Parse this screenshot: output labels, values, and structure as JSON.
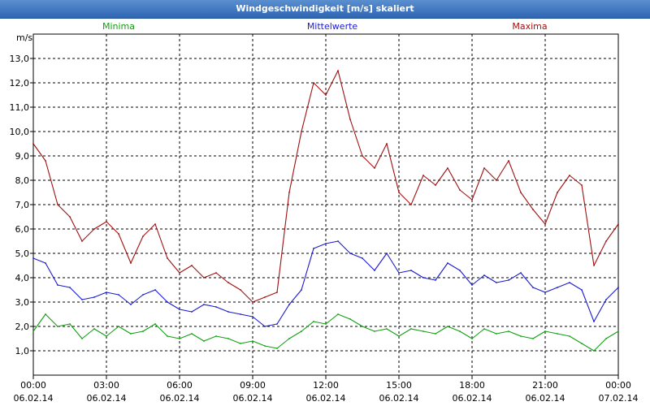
{
  "window": {
    "title": "Windgeschwindigkeit [m/s] skaliert"
  },
  "chart_data": {
    "type": "line",
    "title": "Windgeschwindigkeit [m/s] skaliert",
    "ylabel": "m/s",
    "xlabel": "",
    "ylim": [
      0.0,
      14.0
    ],
    "y_ticks": [
      "1,0",
      "2,0",
      "3,0",
      "4,0",
      "5,0",
      "6,0",
      "7,0",
      "8,0",
      "9,0",
      "10,0",
      "11,0",
      "12,0",
      "13,0"
    ],
    "y_tick_values": [
      1,
      2,
      3,
      4,
      5,
      6,
      7,
      8,
      9,
      10,
      11,
      12,
      13
    ],
    "xlim": [
      0,
      24
    ],
    "x_ticks": [
      {
        "time": "00:00",
        "date": "06.02.14",
        "hour": 0
      },
      {
        "time": "03:00",
        "date": "06.02.14",
        "hour": 3
      },
      {
        "time": "06:00",
        "date": "06.02.14",
        "hour": 6
      },
      {
        "time": "09:00",
        "date": "06.02.14",
        "hour": 9
      },
      {
        "time": "12:00",
        "date": "06.02.14",
        "hour": 12
      },
      {
        "time": "15:00",
        "date": "06.02.14",
        "hour": 15
      },
      {
        "time": "18:00",
        "date": "06.02.14",
        "hour": 18
      },
      {
        "time": "21:00",
        "date": "06.02.14",
        "hour": 21
      },
      {
        "time": "00:00",
        "date": "07.02.14",
        "hour": 24
      }
    ],
    "grid": true,
    "legend_position": "top",
    "series": [
      {
        "name": "Minima",
        "color": "#10a010",
        "x": [
          0,
          0.5,
          1,
          1.5,
          2,
          2.5,
          3,
          3.5,
          4,
          4.5,
          5,
          5.5,
          6,
          6.5,
          7,
          7.5,
          8,
          8.5,
          9,
          9.5,
          10,
          10.5,
          11,
          11.5,
          12,
          12.5,
          13,
          13.5,
          14,
          14.5,
          15,
          15.5,
          16,
          16.5,
          17,
          17.5,
          18,
          18.5,
          19,
          19.5,
          20,
          20.5,
          21,
          21.5,
          22,
          22.5,
          23,
          23.5,
          24
        ],
        "values": [
          1.8,
          2.5,
          2.0,
          2.1,
          1.5,
          1.9,
          1.6,
          2.0,
          1.7,
          1.8,
          2.1,
          1.6,
          1.5,
          1.7,
          1.4,
          1.6,
          1.5,
          1.3,
          1.4,
          1.2,
          1.1,
          1.5,
          1.8,
          2.2,
          2.1,
          2.5,
          2.3,
          2.0,
          1.8,
          1.9,
          1.6,
          1.9,
          1.8,
          1.7,
          2.0,
          1.8,
          1.5,
          1.9,
          1.7,
          1.8,
          1.6,
          1.5,
          1.8,
          1.7,
          1.6,
          1.3,
          1.0,
          1.5,
          1.8
        ]
      },
      {
        "name": "Mittelwerte",
        "color": "#1a1ad0",
        "x": [
          0,
          0.5,
          1,
          1.5,
          2,
          2.5,
          3,
          3.5,
          4,
          4.5,
          5,
          5.5,
          6,
          6.5,
          7,
          7.5,
          8,
          8.5,
          9,
          9.5,
          10,
          10.5,
          11,
          11.5,
          12,
          12.5,
          13,
          13.5,
          14,
          14.5,
          15,
          15.5,
          16,
          16.5,
          17,
          17.5,
          18,
          18.5,
          19,
          19.5,
          20,
          20.5,
          21,
          21.5,
          22,
          22.5,
          23,
          23.5,
          24
        ],
        "values": [
          4.8,
          4.6,
          3.7,
          3.6,
          3.1,
          3.2,
          3.4,
          3.3,
          2.9,
          3.3,
          3.5,
          3.0,
          2.7,
          2.6,
          2.9,
          2.8,
          2.6,
          2.5,
          2.4,
          2.0,
          2.1,
          2.9,
          3.5,
          5.2,
          5.4,
          5.5,
          5.0,
          4.8,
          4.3,
          5.0,
          4.2,
          4.3,
          4.0,
          3.9,
          4.6,
          4.3,
          3.7,
          4.1,
          3.8,
          3.9,
          4.2,
          3.6,
          3.4,
          3.6,
          3.8,
          3.5,
          2.2,
          3.1,
          3.6
        ]
      },
      {
        "name": "Maxima",
        "color": "#a01010",
        "x": [
          0,
          0.5,
          1,
          1.5,
          2,
          2.5,
          3,
          3.5,
          4,
          4.5,
          5,
          5.5,
          6,
          6.5,
          7,
          7.5,
          8,
          8.5,
          9,
          9.5,
          10,
          10.5,
          11,
          11.5,
          12,
          12.5,
          13,
          13.5,
          14,
          14.5,
          15,
          15.5,
          16,
          16.5,
          17,
          17.5,
          18,
          18.5,
          19,
          19.5,
          20,
          20.5,
          21,
          21.5,
          22,
          22.5,
          23,
          23.5,
          24
        ],
        "values": [
          9.5,
          8.8,
          7.0,
          6.5,
          5.5,
          6.0,
          6.3,
          5.8,
          4.6,
          5.7,
          6.2,
          4.8,
          4.2,
          4.5,
          4.0,
          4.2,
          3.8,
          3.5,
          3.0,
          3.2,
          3.4,
          7.5,
          10.0,
          12.0,
          11.5,
          12.5,
          10.5,
          9.0,
          8.5,
          9.5,
          7.5,
          7.0,
          8.2,
          7.8,
          8.5,
          7.6,
          7.2,
          8.5,
          8.0,
          8.8,
          7.5,
          6.8,
          6.2,
          7.5,
          8.2,
          7.8,
          4.5,
          5.5,
          6.2
        ]
      }
    ]
  }
}
